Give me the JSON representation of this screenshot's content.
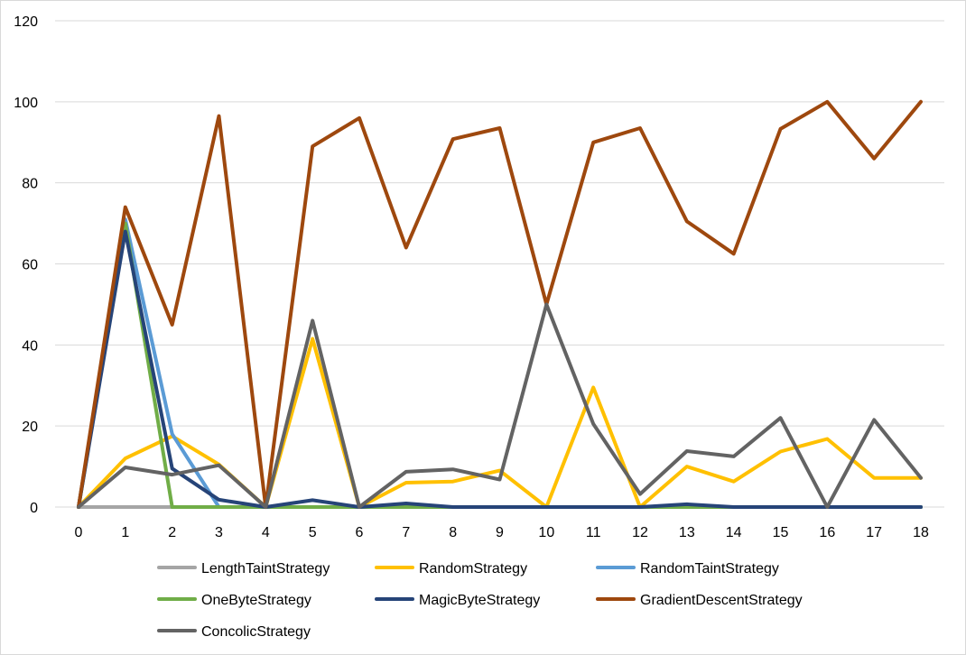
{
  "chart_data": {
    "type": "line",
    "title": "",
    "xlabel": "",
    "ylabel": "",
    "x": [
      0,
      1,
      2,
      3,
      4,
      5,
      6,
      7,
      8,
      9,
      10,
      11,
      12,
      13,
      14,
      15,
      16,
      17,
      18
    ],
    "ylim": [
      0,
      120
    ],
    "yticks": [
      0,
      20,
      40,
      60,
      80,
      100,
      120
    ],
    "grid": true,
    "legend_position": "bottom",
    "series": [
      {
        "name": "LengthTaintStrategy",
        "color": "#a5a5a5",
        "values": [
          0,
          0,
          0,
          0,
          0,
          0,
          0,
          0,
          0,
          0,
          0,
          0,
          0,
          0,
          0,
          0,
          0,
          0,
          0
        ]
      },
      {
        "name": "RandomStrategy",
        "color": "#ffc000",
        "values": [
          0,
          12,
          17.5,
          10.5,
          0,
          41.5,
          0,
          6,
          6.3,
          9,
          0,
          29.5,
          0,
          10,
          6.3,
          13.7,
          16.8,
          7.2,
          7.2
        ]
      },
      {
        "name": "RandomTaintStrategy",
        "color": "#5b9bd5",
        "values": [
          0,
          71,
          18,
          0,
          0,
          0,
          0,
          0,
          0,
          0,
          0,
          0,
          0,
          0,
          0,
          0,
          0,
          0,
          0
        ]
      },
      {
        "name": "OneByteStrategy",
        "color": "#70ad47",
        "values": [
          0,
          70,
          0,
          0,
          0,
          0,
          0,
          0,
          0,
          0,
          0,
          0,
          0,
          0,
          0,
          0,
          0,
          0,
          0
        ]
      },
      {
        "name": "MagicByteStrategy",
        "color": "#264478",
        "values": [
          0,
          68,
          9.5,
          1.8,
          0,
          1.7,
          0,
          0.9,
          0,
          0,
          0,
          0,
          0,
          0.7,
          0,
          0,
          0,
          0,
          0
        ]
      },
      {
        "name": "GradientDescentStrategy",
        "color": "#9e480e",
        "values": [
          0,
          74,
          45,
          96.5,
          0,
          89,
          96,
          64,
          90.8,
          93.5,
          50,
          90,
          93.5,
          70.5,
          62.5,
          93.3,
          100,
          86,
          100
        ]
      },
      {
        "name": "ConcolicStrategy",
        "color": "#636363",
        "values": [
          0,
          9.8,
          8,
          10.3,
          0,
          46,
          0,
          8.7,
          9.3,
          6.8,
          50,
          20.5,
          3.2,
          13.8,
          12.5,
          22,
          0,
          21.5,
          7.2
        ]
      }
    ]
  }
}
